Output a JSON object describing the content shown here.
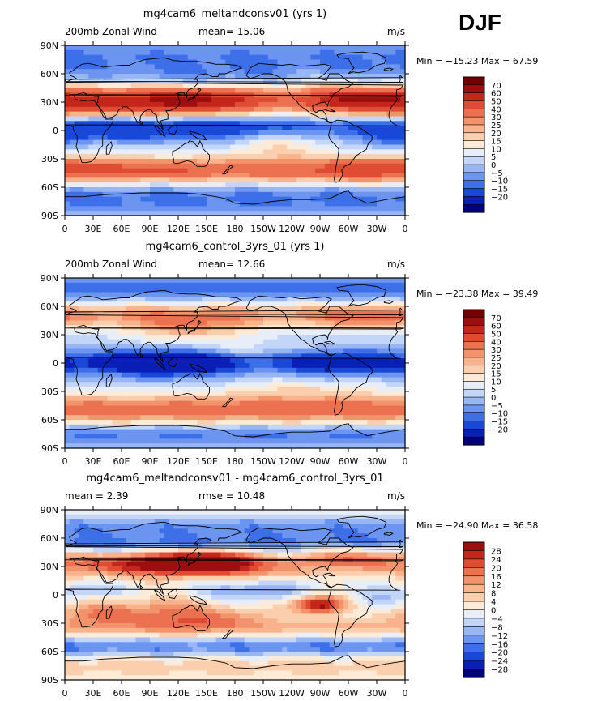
{
  "figure": {
    "season": "DJF"
  },
  "colors": {
    "main_scale": [
      "#00007a",
      "#0a1fb6",
      "#1848d8",
      "#3d6fe8",
      "#6b95f0",
      "#98b6f4",
      "#c4d6f8",
      "#e8eef8",
      "#fdebd8",
      "#fbcfae",
      "#f8b28c",
      "#f3936c",
      "#ec7150",
      "#e04c33",
      "#c4261b",
      "#9c0f0e",
      "#720000"
    ],
    "diff_scale": [
      "#00007a",
      "#0a1fb6",
      "#1848d8",
      "#3d6fe8",
      "#6b95f0",
      "#98b6f4",
      "#c4d6f8",
      "#e8eef8",
      "#fdebd8",
      "#fbcfae",
      "#f8b28c",
      "#f3936c",
      "#ec7150",
      "#e04c33",
      "#c4261b",
      "#9c0f0e"
    ],
    "coast": "#000000"
  },
  "chart_data": [
    {
      "type": "heatmap",
      "title": "mg4cam6_meltandconsv01 (yrs 1)",
      "left_label": "200mb  Zonal Wind",
      "center_label": "mean=   15.06",
      "right_label": "m/s",
      "stats_label": "Min = −15.23  Max =  67.59",
      "min": -15.23,
      "max": 67.59,
      "mean": 15.06,
      "colorbar_kind": "main",
      "colorbar_levels": [
        "70",
        "60",
        "50",
        "40",
        "30",
        "25",
        "20",
        "15",
        "10",
        "5",
        "0",
        "−5",
        "−10",
        "−15",
        "−20"
      ],
      "xlabels": [
        "0",
        "30E",
        "60E",
        "90E",
        "120E",
        "150E",
        "180",
        "150W",
        "120W",
        "90W",
        "60W",
        "30W",
        "0"
      ],
      "ylabels": [
        "90N",
        "60N",
        "30N",
        "0",
        "30S",
        "60S",
        "90S"
      ],
      "xlim": [
        0,
        360
      ],
      "ylim": [
        -90,
        90
      ],
      "features": [
        {
          "lon": 60,
          "lat": 30,
          "rl": 95,
          "rt": 11,
          "v": 48
        },
        {
          "lon": 160,
          "lat": 32,
          "rl": 55,
          "rt": 10,
          "v": 30
        },
        {
          "lon": 300,
          "lat": 33,
          "rl": 50,
          "rt": 11,
          "v": 38
        },
        {
          "lon": 90,
          "lat": 2,
          "rl": 95,
          "rt": 9,
          "v": -24
        },
        {
          "lon": 30,
          "lat": 3,
          "rl": 40,
          "rt": 8,
          "v": -14
        },
        {
          "lon": 200,
          "lat": 5,
          "rl": 60,
          "rt": 9,
          "v": -12
        },
        {
          "lon": 290,
          "lat": 5,
          "rl": 30,
          "rt": 10,
          "v": -10
        },
        {
          "lon": 0,
          "lat": 78,
          "rl": 360,
          "rt": 14,
          "v": -12
        },
        {
          "lon": 150,
          "lat": 58,
          "rl": 70,
          "rt": 9,
          "v": -8
        },
        {
          "lon": 340,
          "lat": 60,
          "rl": 40,
          "rt": 10,
          "v": -6
        },
        {
          "lon": 0,
          "lat": -42,
          "rl": 360,
          "rt": 10,
          "v": 34
        },
        {
          "lon": 320,
          "lat": -42,
          "rl": 45,
          "rt": 9,
          "v": 12
        },
        {
          "lon": 60,
          "lat": -42,
          "rl": 50,
          "rt": 8,
          "v": 8
        },
        {
          "lon": 0,
          "lat": -72,
          "rl": 360,
          "rt": 12,
          "v": -14
        },
        {
          "lon": 230,
          "lat": -15,
          "rl": 40,
          "rt": 10,
          "v": 12
        },
        {
          "lon": 340,
          "lat": -10,
          "rl": 30,
          "rt": 8,
          "v": -8
        }
      ]
    },
    {
      "type": "heatmap",
      "title": "mg4cam6_control_3yrs_01 (yrs 1)",
      "left_label": "200mb  Zonal Wind",
      "center_label": "mean=   12.66",
      "right_label": "m/s",
      "stats_label": "Min = −23.38  Max =  39.49",
      "min": -23.38,
      "max": 39.49,
      "mean": 12.66,
      "colorbar_kind": "main",
      "colorbar_levels": [
        "70",
        "60",
        "50",
        "40",
        "30",
        "25",
        "20",
        "15",
        "10",
        "5",
        "0",
        "−5",
        "−10",
        "−15",
        "−20"
      ],
      "xlabels": [
        "0",
        "30E",
        "60E",
        "90E",
        "120E",
        "150E",
        "180",
        "150W",
        "120W",
        "90W",
        "60W",
        "30W",
        "0"
      ],
      "ylabels": [
        "90N",
        "60N",
        "30N",
        "0",
        "30S",
        "60S",
        "90S"
      ],
      "xlim": [
        0,
        360
      ],
      "ylim": [
        -90,
        90
      ],
      "features": [
        {
          "lon": 0,
          "lat": 52,
          "rl": 360,
          "rt": 9,
          "v": 22
        },
        {
          "lon": 130,
          "lat": 38,
          "rl": 50,
          "rt": 10,
          "v": 20
        },
        {
          "lon": 320,
          "lat": 45,
          "rl": 40,
          "rt": 9,
          "v": 14
        },
        {
          "lon": 110,
          "lat": 0,
          "rl": 40,
          "rt": 10,
          "v": -30
        },
        {
          "lon": 200,
          "lat": 0,
          "rl": 80,
          "rt": 9,
          "v": -16
        },
        {
          "lon": 290,
          "lat": 0,
          "rl": 35,
          "rt": 10,
          "v": -20
        },
        {
          "lon": 20,
          "lat": 0,
          "rl": 45,
          "rt": 9,
          "v": -20
        },
        {
          "lon": 0,
          "lat": 80,
          "rl": 360,
          "rt": 12,
          "v": -14
        },
        {
          "lon": 0,
          "lat": -50,
          "rl": 360,
          "rt": 11,
          "v": 34
        },
        {
          "lon": 250,
          "lat": -28,
          "rl": 60,
          "rt": 9,
          "v": 10
        },
        {
          "lon": 0,
          "lat": -75,
          "rl": 360,
          "rt": 10,
          "v": -14
        },
        {
          "lon": 180,
          "lat": 15,
          "rl": 60,
          "rt": 7,
          "v": 6
        }
      ]
    },
    {
      "type": "heatmap",
      "title": "mg4cam6_meltandconsv01 - mg4cam6_control_3yrs_01",
      "left_label": "mean =     2.39",
      "center_label": "rmse =    10.48",
      "right_label": "m/s",
      "stats_label": "Min = −24.90  Max =  36.58",
      "min": -24.9,
      "max": 36.58,
      "mean": 2.39,
      "rmse": 10.48,
      "colorbar_kind": "diff",
      "colorbar_levels": [
        "28",
        "24",
        "20",
        "16",
        "12",
        "8",
        "4",
        "0",
        "−4",
        "−8",
        "−12",
        "−16",
        "−20",
        "−24",
        "−28"
      ],
      "xlabels": [
        "0",
        "30E",
        "60E",
        "90E",
        "120E",
        "150E",
        "180",
        "150W",
        "120W",
        "90W",
        "60W",
        "30W",
        "0"
      ],
      "ylabels": [
        "90N",
        "60N",
        "30N",
        "0",
        "30S",
        "60S",
        "90S"
      ],
      "xlim": [
        0,
        360
      ],
      "ylim": [
        -90,
        90
      ],
      "features": [
        {
          "lon": 100,
          "lat": 32,
          "rl": 70,
          "rt": 9,
          "v": 30
        },
        {
          "lon": 150,
          "lat": 36,
          "rl": 35,
          "rt": 8,
          "v": 26
        },
        {
          "lon": 300,
          "lat": 38,
          "rl": 40,
          "rt": 9,
          "v": 18
        },
        {
          "lon": 0,
          "lat": 55,
          "rl": 360,
          "rt": 7,
          "v": -16
        },
        {
          "lon": 0,
          "lat": 72,
          "rl": 360,
          "rt": 8,
          "v": -14
        },
        {
          "lon": 110,
          "lat": -20,
          "rl": 40,
          "rt": 13,
          "v": 14
        },
        {
          "lon": 270,
          "lat": -10,
          "rl": 20,
          "rt": 7,
          "v": 32
        },
        {
          "lon": 170,
          "lat": -25,
          "rl": 40,
          "rt": 8,
          "v": 10
        },
        {
          "lon": 30,
          "lat": -20,
          "rl": 35,
          "rt": 9,
          "v": 14
        },
        {
          "lon": 200,
          "lat": 5,
          "rl": 50,
          "rt": 8,
          "v": -12
        },
        {
          "lon": 30,
          "lat": 5,
          "rl": 25,
          "rt": 6,
          "v": -10
        },
        {
          "lon": 0,
          "lat": -55,
          "rl": 360,
          "rt": 7,
          "v": -16
        },
        {
          "lon": 0,
          "lat": -35,
          "rl": 360,
          "rt": 6,
          "v": 8
        },
        {
          "lon": 0,
          "lat": -75,
          "rl": 360,
          "rt": 8,
          "v": 6
        },
        {
          "lon": 210,
          "lat": 25,
          "rl": 40,
          "rt": 7,
          "v": 8
        },
        {
          "lon": 330,
          "lat": -5,
          "rl": 25,
          "rt": 8,
          "v": -8
        }
      ]
    }
  ]
}
